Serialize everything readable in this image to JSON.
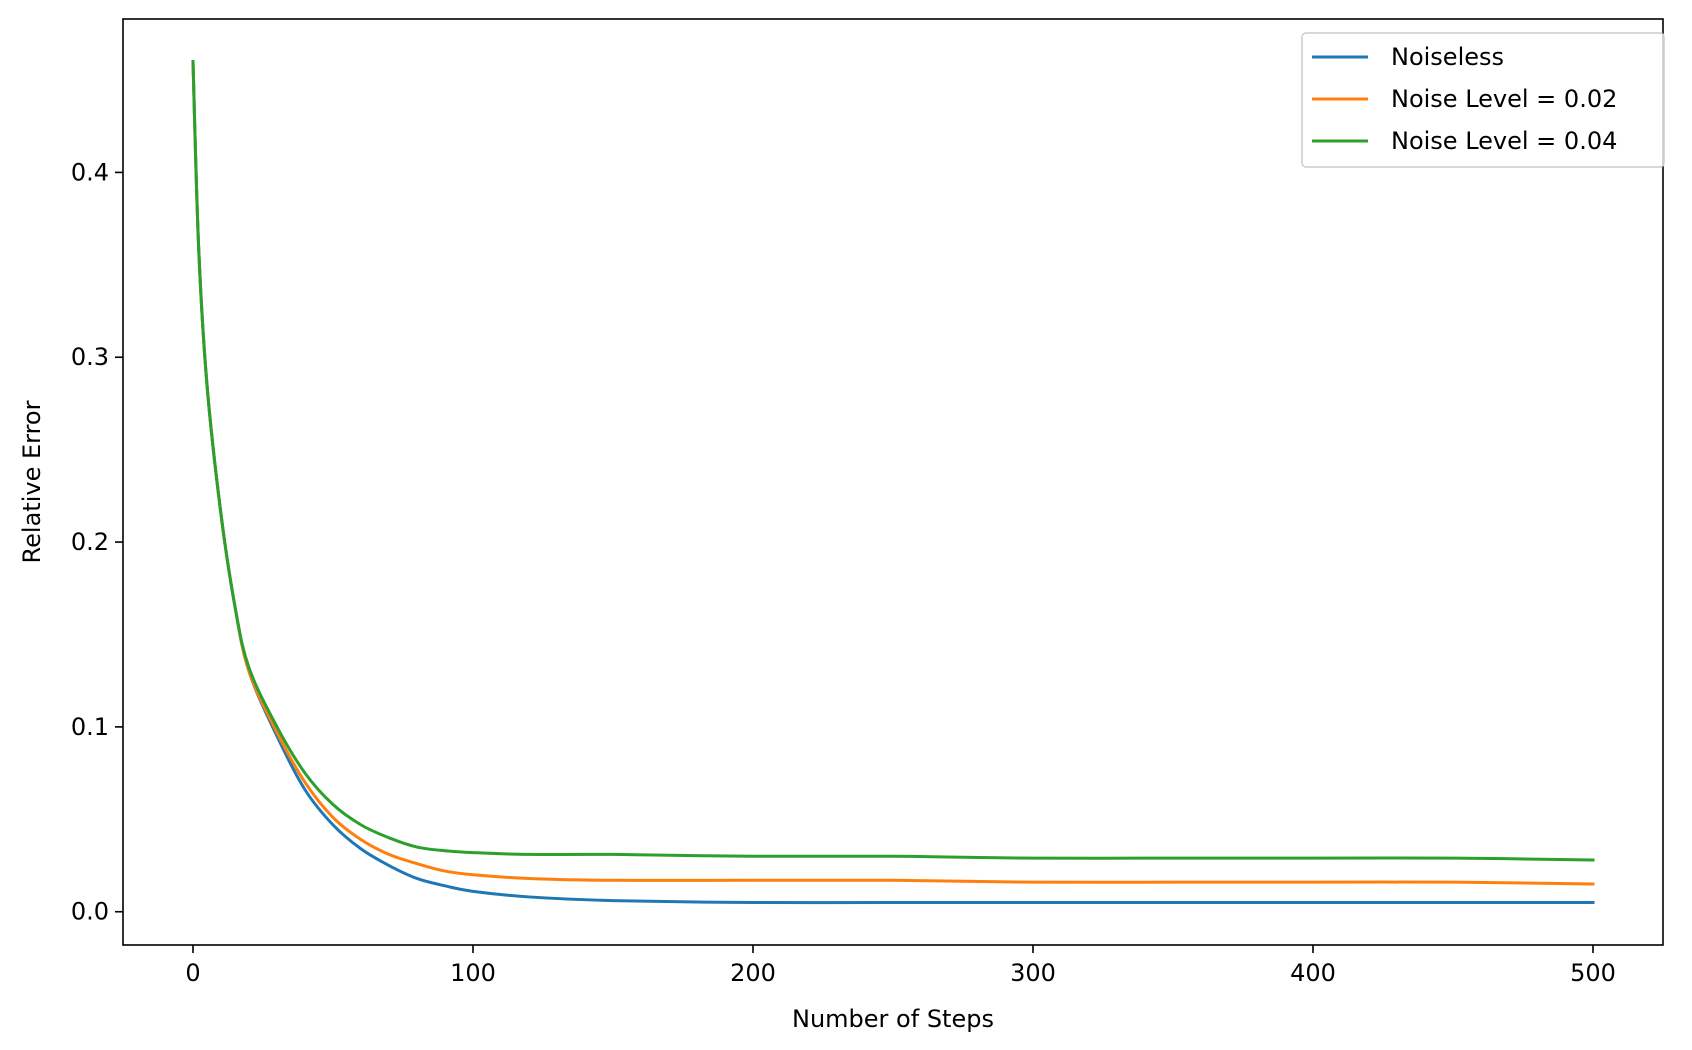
{
  "chart_data": {
    "type": "line",
    "title": "",
    "xlabel": "Number of Steps",
    "ylabel": "Relative Error",
    "xlim": [
      -25,
      525
    ],
    "ylim": [
      -0.018,
      0.483
    ],
    "xticks": [
      0,
      100,
      200,
      300,
      400,
      500
    ],
    "yticks": [
      0.0,
      0.1,
      0.2,
      0.3,
      0.4
    ],
    "xtick_labels": [
      "0",
      "100",
      "200",
      "300",
      "400",
      "500"
    ],
    "ytick_labels": [
      "0.0",
      "0.1",
      "0.2",
      "0.3",
      "0.4"
    ],
    "grid": false,
    "legend_position": "top-right",
    "x": [
      0,
      2,
      5,
      10,
      15,
      20,
      30,
      40,
      50,
      60,
      70,
      80,
      90,
      100,
      120,
      150,
      200,
      250,
      300,
      350,
      400,
      450,
      500
    ],
    "series": [
      {
        "name": "Noiseless",
        "color": "#1f77b4",
        "values": [
          0.46,
          0.36,
          0.285,
          0.215,
          0.165,
          0.13,
          0.095,
          0.066,
          0.047,
          0.034,
          0.025,
          0.018,
          0.014,
          0.011,
          0.008,
          0.006,
          0.005,
          0.005,
          0.005,
          0.005,
          0.005,
          0.005,
          0.005
        ]
      },
      {
        "name": "Noise Level = 0.02",
        "color": "#ff7f0e",
        "values": [
          0.46,
          0.36,
          0.285,
          0.215,
          0.165,
          0.13,
          0.097,
          0.07,
          0.051,
          0.039,
          0.031,
          0.026,
          0.022,
          0.02,
          0.018,
          0.017,
          0.017,
          0.017,
          0.016,
          0.016,
          0.016,
          0.016,
          0.015
        ]
      },
      {
        "name": "Noise Level = 0.04",
        "color": "#2ca02c",
        "values": [
          0.46,
          0.36,
          0.285,
          0.215,
          0.165,
          0.132,
          0.1,
          0.075,
          0.058,
          0.047,
          0.04,
          0.035,
          0.033,
          0.032,
          0.031,
          0.031,
          0.03,
          0.03,
          0.029,
          0.029,
          0.029,
          0.029,
          0.028
        ]
      }
    ]
  }
}
